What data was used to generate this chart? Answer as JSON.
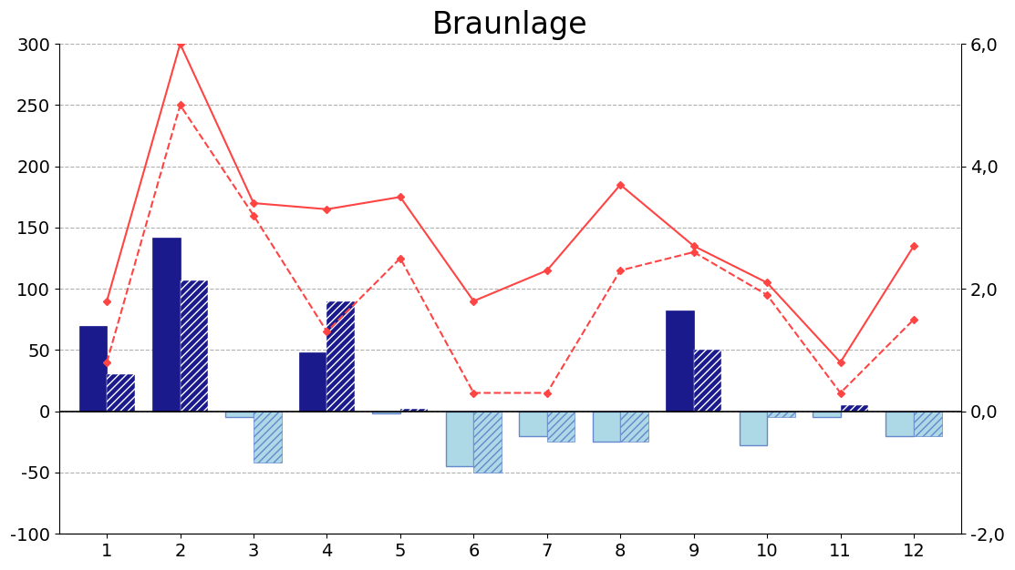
{
  "title": "Braunlage",
  "months": [
    1,
    2,
    3,
    4,
    5,
    6,
    7,
    8,
    9,
    10,
    11,
    12
  ],
  "bar1_values": [
    70,
    142,
    -5,
    48,
    -2,
    -45,
    -20,
    -25,
    82,
    -28,
    -5,
    -20
  ],
  "bar2_values": [
    30,
    107,
    -42,
    90,
    2,
    -50,
    -25,
    -25,
    50,
    -5,
    5,
    -20
  ],
  "line1_values": [
    1.8,
    6.0,
    3.4,
    3.3,
    3.5,
    1.8,
    2.3,
    3.7,
    2.7,
    2.1,
    0.8,
    2.7
  ],
  "line2_values": [
    0.8,
    5.0,
    3.2,
    1.3,
    2.5,
    0.3,
    0.3,
    2.3,
    2.6,
    1.9,
    0.3,
    1.5
  ],
  "ylim_left": [
    -100,
    300
  ],
  "ylim_right": [
    -2.0,
    6.0
  ],
  "yticks_left": [
    -100,
    -50,
    0,
    50,
    100,
    150,
    200,
    250,
    300
  ],
  "yticks_right": [
    -2.0,
    0.0,
    2.0,
    4.0,
    6.0
  ],
  "bar_width": 0.38,
  "bar_color_pos_solid": "#1a1a8c",
  "bar_color_neg_solid": "#add8e6",
  "bar_color_neg_outline": "#6688cc",
  "line1_color": "#ff4444",
  "line2_color": "#ff4444",
  "background_color": "#ffffff",
  "grid_color": "#b0b0b0",
  "title_fontsize": 24,
  "tick_fontsize": 14
}
